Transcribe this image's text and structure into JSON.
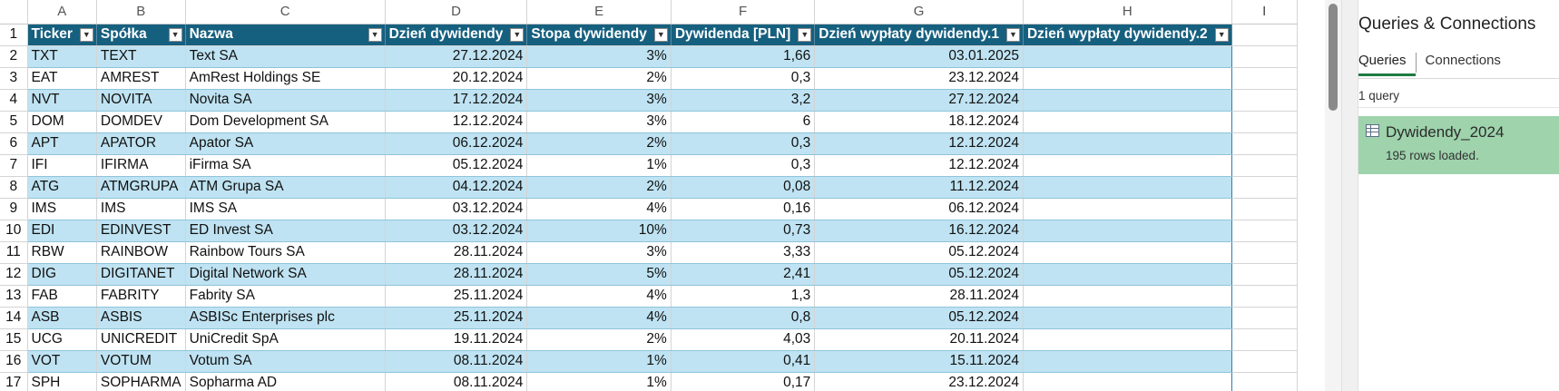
{
  "columns": [
    "A",
    "B",
    "C",
    "D",
    "E",
    "F",
    "G",
    "H",
    "I"
  ],
  "headers": [
    "Ticker",
    "Spółka",
    "Nazwa",
    "Dzień dywidendy",
    "Stopa dywidendy",
    "Dywidenda [PLN]",
    "Dzień wypłaty dywidendy.1",
    "Dzień wypłaty dywidendy.2"
  ],
  "rows": [
    {
      "n": "2",
      "ticker": "TXT",
      "spolka": "TEXT",
      "nazwa": "Text SA",
      "dzien": "27.12.2024",
      "stopa": "3%",
      "dyw": "1,66",
      "wyp1": "03.01.2025",
      "wyp2": ""
    },
    {
      "n": "3",
      "ticker": "EAT",
      "spolka": "AMREST",
      "nazwa": "AmRest Holdings SE",
      "dzien": "20.12.2024",
      "stopa": "2%",
      "dyw": "0,3",
      "wyp1": "23.12.2024",
      "wyp2": ""
    },
    {
      "n": "4",
      "ticker": "NVT",
      "spolka": "NOVITA",
      "nazwa": "Novita SA",
      "dzien": "17.12.2024",
      "stopa": "3%",
      "dyw": "3,2",
      "wyp1": "27.12.2024",
      "wyp2": ""
    },
    {
      "n": "5",
      "ticker": "DOM",
      "spolka": "DOMDEV",
      "nazwa": "Dom Development SA",
      "dzien": "12.12.2024",
      "stopa": "3%",
      "dyw": "6",
      "wyp1": "18.12.2024",
      "wyp2": ""
    },
    {
      "n": "6",
      "ticker": "APT",
      "spolka": "APATOR",
      "nazwa": "Apator SA",
      "dzien": "06.12.2024",
      "stopa": "2%",
      "dyw": "0,3",
      "wyp1": "12.12.2024",
      "wyp2": ""
    },
    {
      "n": "7",
      "ticker": "IFI",
      "spolka": "IFIRMA",
      "nazwa": "iFirma SA",
      "dzien": "05.12.2024",
      "stopa": "1%",
      "dyw": "0,3",
      "wyp1": "12.12.2024",
      "wyp2": ""
    },
    {
      "n": "8",
      "ticker": "ATG",
      "spolka": "ATMGRUPA",
      "nazwa": "ATM Grupa SA",
      "dzien": "04.12.2024",
      "stopa": "2%",
      "dyw": "0,08",
      "wyp1": "11.12.2024",
      "wyp2": ""
    },
    {
      "n": "9",
      "ticker": "IMS",
      "spolka": "IMS",
      "nazwa": "IMS SA",
      "dzien": "03.12.2024",
      "stopa": "4%",
      "dyw": "0,16",
      "wyp1": "06.12.2024",
      "wyp2": ""
    },
    {
      "n": "10",
      "ticker": "EDI",
      "spolka": "EDINVEST",
      "nazwa": "ED Invest SA",
      "dzien": "03.12.2024",
      "stopa": "10%",
      "dyw": "0,73",
      "wyp1": "16.12.2024",
      "wyp2": ""
    },
    {
      "n": "11",
      "ticker": "RBW",
      "spolka": "RAINBOW",
      "nazwa": "Rainbow Tours SA",
      "dzien": "28.11.2024",
      "stopa": "3%",
      "dyw": "3,33",
      "wyp1": "05.12.2024",
      "wyp2": ""
    },
    {
      "n": "12",
      "ticker": "DIG",
      "spolka": "DIGITANET",
      "nazwa": "Digital Network SA",
      "dzien": "28.11.2024",
      "stopa": "5%",
      "dyw": "2,41",
      "wyp1": "05.12.2024",
      "wyp2": ""
    },
    {
      "n": "13",
      "ticker": "FAB",
      "spolka": "FABRITY",
      "nazwa": "Fabrity SA",
      "dzien": "25.11.2024",
      "stopa": "4%",
      "dyw": "1,3",
      "wyp1": "28.11.2024",
      "wyp2": ""
    },
    {
      "n": "14",
      "ticker": "ASB",
      "spolka": "ASBIS",
      "nazwa": "ASBISc Enterprises plc",
      "dzien": "25.11.2024",
      "stopa": "4%",
      "dyw": "0,8",
      "wyp1": "05.12.2024",
      "wyp2": ""
    },
    {
      "n": "15",
      "ticker": "UCG",
      "spolka": "UNICREDIT",
      "nazwa": "UniCredit SpA",
      "dzien": "19.11.2024",
      "stopa": "2%",
      "dyw": "4,03",
      "wyp1": "20.11.2024",
      "wyp2": ""
    },
    {
      "n": "16",
      "ticker": "VOT",
      "spolka": "VOTUM",
      "nazwa": "Votum SA",
      "dzien": "08.11.2024",
      "stopa": "1%",
      "dyw": "0,41",
      "wyp1": "15.11.2024",
      "wyp2": ""
    },
    {
      "n": "17",
      "ticker": "SPH",
      "spolka": "SOPHARMA",
      "nazwa": "Sopharma AD",
      "dzien": "08.11.2024",
      "stopa": "1%",
      "dyw": "0,17",
      "wyp1": "23.12.2024",
      "wyp2": ""
    }
  ],
  "pane": {
    "title": "Queries & Connections",
    "tab_queries": "Queries",
    "tab_connections": "Connections",
    "query_count": "1 query",
    "query_name": "Dywidendy_2024",
    "query_status": "195 rows loaded."
  },
  "colors": {
    "header_bg": "#16607f",
    "band_bg": "#bfe3f2",
    "query_item_bg": "#9ed3ac",
    "active_tab_underline": "#1f7a43"
  }
}
